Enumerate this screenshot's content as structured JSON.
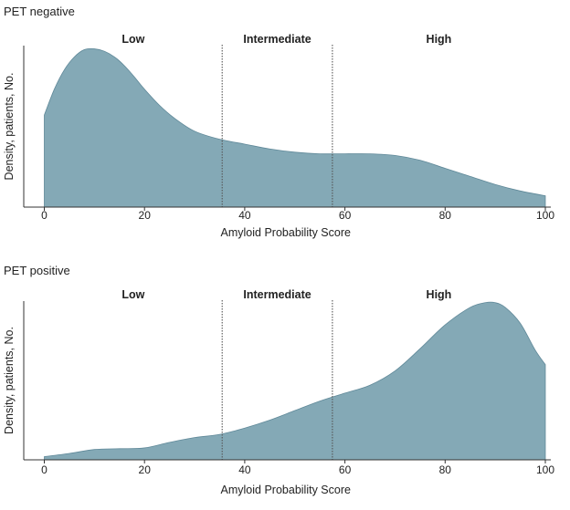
{
  "chart_data": [
    {
      "type": "area",
      "title": "PET negative",
      "xlabel": "Amyloid Probability Score",
      "ylabel": "Density, patients, No.",
      "xlim": [
        0,
        100
      ],
      "ylim": [
        0,
        1
      ],
      "x_ticks": [
        0,
        20,
        40,
        60,
        80,
        100
      ],
      "y_ticks_shown": false,
      "grid": false,
      "thresholds": [
        35.5,
        57.5
      ],
      "zones": [
        "Low",
        "Intermediate",
        "High"
      ],
      "fill_color": "#84a9b6",
      "stroke_color": "#5f8898",
      "threshold_color": "#555555",
      "x": [
        0,
        2,
        4,
        6,
        8,
        10,
        12,
        14,
        16,
        18,
        20,
        23,
        26,
        30,
        35,
        40,
        45,
        50,
        55,
        60,
        65,
        70,
        75,
        80,
        85,
        90,
        95,
        100
      ],
      "y": [
        0.57,
        0.73,
        0.85,
        0.93,
        0.975,
        0.98,
        0.965,
        0.93,
        0.875,
        0.805,
        0.73,
        0.63,
        0.55,
        0.47,
        0.42,
        0.39,
        0.36,
        0.34,
        0.33,
        0.33,
        0.33,
        0.32,
        0.29,
        0.24,
        0.19,
        0.14,
        0.1,
        0.07
      ]
    },
    {
      "type": "area",
      "title": "PET positive",
      "xlabel": "Amyloid Probability Score",
      "ylabel": "Density, patients, No.",
      "xlim": [
        0,
        100
      ],
      "ylim": [
        0,
        1
      ],
      "x_ticks": [
        0,
        20,
        40,
        60,
        80,
        100
      ],
      "y_ticks_shown": false,
      "grid": false,
      "thresholds": [
        35.5,
        57.5
      ],
      "zones": [
        "Low",
        "Intermediate",
        "High"
      ],
      "fill_color": "#84a9b6",
      "stroke_color": "#5f8898",
      "threshold_color": "#555555",
      "x": [
        0,
        5,
        10,
        15,
        20,
        25,
        30,
        35,
        40,
        45,
        50,
        55,
        60,
        65,
        70,
        75,
        80,
        85,
        88,
        90,
        92,
        95,
        98,
        100
      ],
      "y": [
        0.02,
        0.04,
        0.065,
        0.07,
        0.075,
        0.11,
        0.14,
        0.16,
        0.2,
        0.25,
        0.31,
        0.37,
        0.42,
        0.47,
        0.56,
        0.7,
        0.85,
        0.96,
        0.99,
        0.99,
        0.96,
        0.86,
        0.69,
        0.6
      ]
    }
  ]
}
